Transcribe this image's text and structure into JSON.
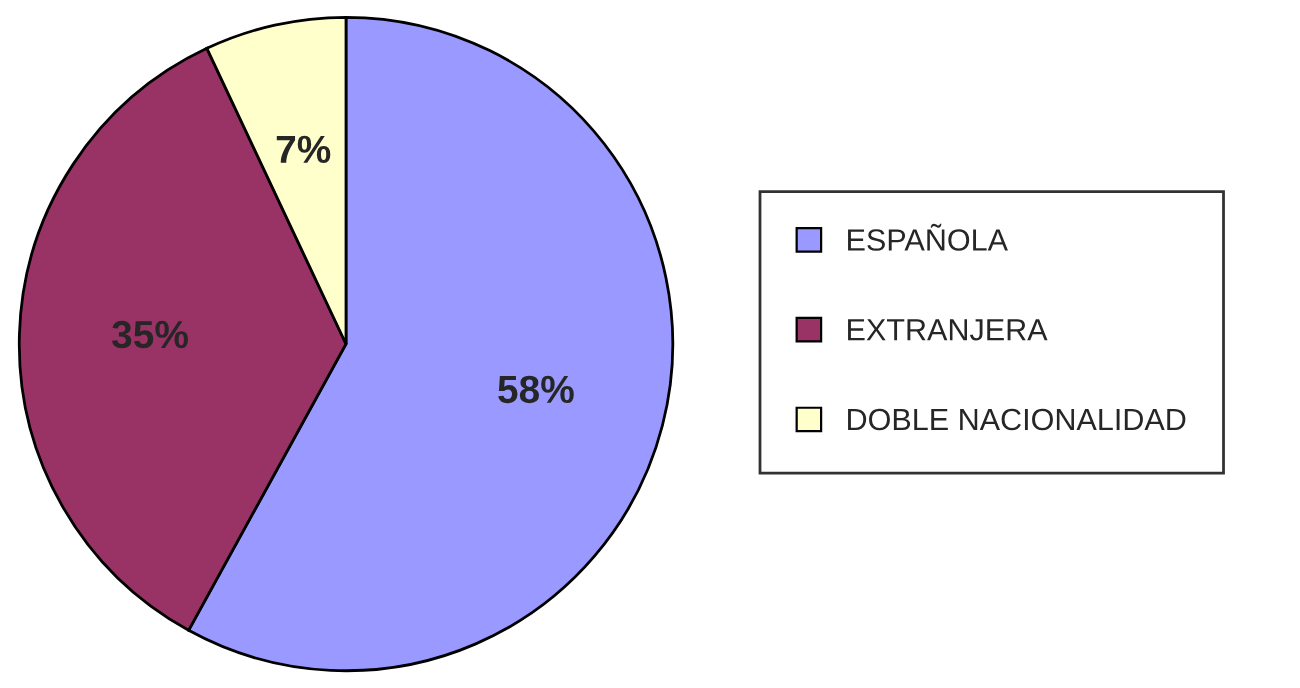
{
  "chart_data": {
    "type": "pie",
    "categories": [
      "ESPAÑOLA",
      "EXTRANJERA",
      "DOBLE NACIONALIDAD"
    ],
    "values": [
      58,
      35,
      7
    ],
    "colors": [
      "#9999ff",
      "#993366",
      "#ffffcc"
    ],
    "value_labels": [
      "58%",
      "35%",
      "7%"
    ],
    "legend": "right"
  }
}
